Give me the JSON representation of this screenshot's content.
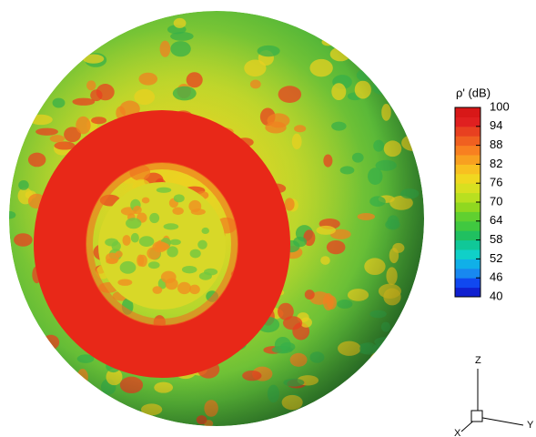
{
  "chart_data": {
    "type": "contour",
    "colorbar_title": "ρ' (dB)",
    "zticks": [
      100,
      94,
      88,
      82,
      76,
      70,
      64,
      58,
      52,
      46,
      40
    ],
    "zlim": [
      40,
      100
    ],
    "colors": [
      "#1020d0",
      "#1048f0",
      "#1888f0",
      "#10b0e8",
      "#10d0c8",
      "#10c898",
      "#20c060",
      "#40c840",
      "#60d030",
      "#90d820",
      "#b8e020",
      "#d8e020",
      "#f0d820",
      "#f8c020",
      "#f8a020",
      "#f88020",
      "#f06020",
      "#e84020",
      "#e02020",
      "#d81818"
    ],
    "triad_labels": [
      "Z",
      "Y",
      "X"
    ]
  }
}
